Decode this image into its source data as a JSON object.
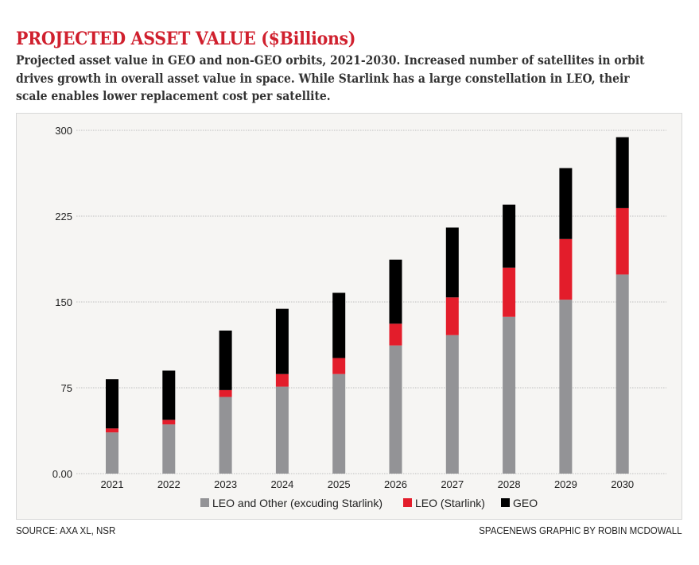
{
  "header": {
    "title": "PROJECTED ASSET VALUE ($Billions)",
    "subtitle": "Projected asset value in GEO and non-GEO orbits, 2021-2030. Increased number of satellites in orbit drives growth in overall asset value in space. While Starlink has a large constellation in LEO, their scale enables lower replacement cost per satellite."
  },
  "footer": {
    "source": "SOURCE: AXA XL, NSR",
    "credit": "SPACENEWS GRAPHIC BY ROBIN MCDOWALL"
  },
  "colors": {
    "title": "#d0202e",
    "leo_other": "#939396",
    "leo_starlink": "#e31d2b",
    "geo": "#000000",
    "panel_bg": "#f6f5f3"
  },
  "chart_data": {
    "type": "bar",
    "stacked": true,
    "title": "PROJECTED ASSET VALUE ($Billions)",
    "xlabel": "",
    "ylabel": "",
    "ylim": [
      0,
      300
    ],
    "yticks": [
      0,
      75,
      150,
      225,
      300
    ],
    "ytick_labels": [
      "0.00",
      "75",
      "150",
      "225",
      "300"
    ],
    "grid": true,
    "legend_position": "bottom-center",
    "categories": [
      "2021",
      "2022",
      "2023",
      "2024",
      "2025",
      "2026",
      "2027",
      "2028",
      "2029",
      "2030"
    ],
    "series": [
      {
        "name": "LEO and Other (excuding Starlink)",
        "color": "#939396",
        "values": [
          36,
          43,
          67,
          76,
          87,
          112,
          121,
          137,
          152,
          174
        ]
      },
      {
        "name": "LEO (Starlink)",
        "color": "#e31d2b",
        "values": [
          3.5,
          4,
          6,
          11,
          14,
          19,
          33,
          43,
          53,
          58
        ]
      },
      {
        "name": "GEO",
        "color": "#000000",
        "values": [
          43,
          43,
          52,
          57,
          57,
          56,
          61,
          55,
          62,
          62
        ]
      }
    ]
  }
}
